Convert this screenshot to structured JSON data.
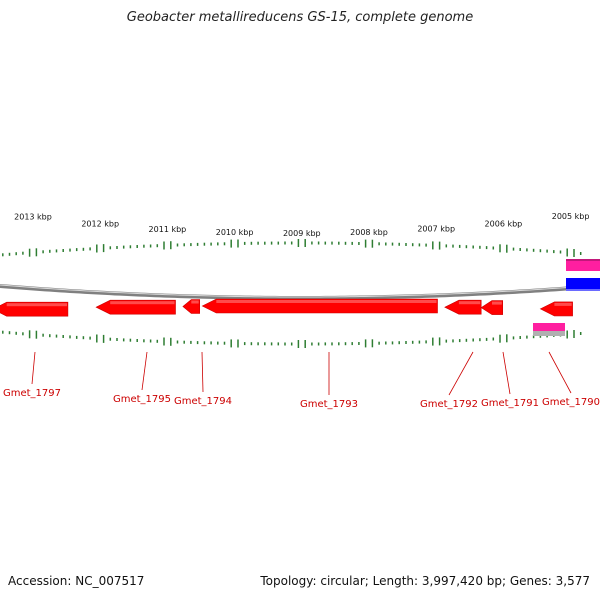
{
  "title": "Geobacter metallireducens GS-15, complete genome",
  "footer": {
    "accession": "Accession: NC_007517",
    "summary": "Topology: circular; Length: 3,997,420 bp; Genes: 3,577"
  },
  "colors": {
    "gene": "#ff0000",
    "gene_dark": "#cc0000",
    "label": "#cc0000",
    "tick": "#2e7d32",
    "backbone": "#808080",
    "feature_blue": "#0000ff",
    "feature_magenta": "#ff1fa0",
    "feature_grey": "#b0b0b0"
  },
  "scale": {
    "unit": "kbp",
    "labels": [
      {
        "value": 2013,
        "text": "2013 kbp"
      },
      {
        "value": 2012,
        "text": "2012 kbp"
      },
      {
        "value": 2011,
        "text": "2011 kbp"
      },
      {
        "value": 2010,
        "text": "2010 kbp"
      },
      {
        "value": 2009,
        "text": "2009 kbp"
      },
      {
        "value": 2008,
        "text": "2008 kbp"
      },
      {
        "value": 2007,
        "text": "2007 kbp"
      },
      {
        "value": 2006,
        "text": "2006 kbp"
      },
      {
        "value": 2005,
        "text": "2005 kbp"
      }
    ]
  },
  "genes": [
    {
      "name": "Gmet_1797",
      "start": 2012.48,
      "end": 2013.6,
      "strand": "-"
    },
    {
      "name": "Gmet_1795",
      "start": 2010.88,
      "end": 2012.06,
      "strand": "-"
    },
    {
      "name": "Gmet_1794",
      "start": 2010.52,
      "end": 2010.77,
      "strand": "-"
    },
    {
      "name": "Gmet_1793",
      "start": 2006.98,
      "end": 2010.48,
      "strand": "-"
    },
    {
      "name": "Gmet_1792",
      "start": 2006.33,
      "end": 2006.87,
      "strand": "-"
    },
    {
      "name": "Gmet_1791",
      "start": 2006.01,
      "end": 2006.33,
      "strand": "-"
    },
    {
      "name": "Gmet_1790",
      "start": 2004.97,
      "end": 2005.45,
      "strand": "-"
    }
  ]
}
